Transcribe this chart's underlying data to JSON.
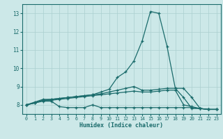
{
  "xlabel": "Humidex (Indice chaleur)",
  "xlim": [
    -0.5,
    23.5
  ],
  "ylim": [
    7.5,
    13.5
  ],
  "yticks": [
    8,
    9,
    10,
    11,
    12,
    13
  ],
  "xticks": [
    0,
    1,
    2,
    3,
    4,
    5,
    6,
    7,
    8,
    9,
    10,
    11,
    12,
    13,
    14,
    15,
    16,
    17,
    18,
    19,
    20,
    21,
    22,
    23
  ],
  "background_color": "#cce8e8",
  "line_color": "#1a6b6b",
  "grid_color": "#aacfcf",
  "series": [
    [
      8.0,
      8.1,
      8.25,
      8.3,
      8.35,
      8.4,
      8.45,
      8.5,
      8.55,
      8.7,
      8.85,
      9.5,
      9.8,
      10.4,
      11.5,
      13.1,
      13.0,
      11.2,
      8.9,
      8.4,
      7.8,
      7.8,
      7.75,
      7.75
    ],
    [
      8.0,
      8.15,
      8.3,
      8.3,
      8.35,
      8.4,
      8.45,
      8.5,
      8.55,
      8.6,
      8.7,
      8.8,
      8.9,
      9.0,
      8.8,
      8.8,
      8.85,
      8.9,
      8.9,
      8.9,
      8.4,
      7.8,
      7.75,
      7.75
    ],
    [
      8.0,
      8.1,
      8.25,
      8.25,
      8.3,
      8.35,
      8.4,
      8.45,
      8.5,
      8.55,
      8.6,
      8.65,
      8.7,
      8.75,
      8.7,
      8.7,
      8.75,
      8.8,
      8.8,
      8.0,
      7.9,
      7.8,
      7.75,
      7.75
    ],
    [
      8.0,
      8.1,
      8.2,
      8.2,
      7.9,
      7.85,
      7.85,
      7.85,
      8.0,
      7.85,
      7.85,
      7.85,
      7.85,
      7.85,
      7.85,
      7.85,
      7.85,
      7.85,
      7.85,
      7.85,
      7.85,
      7.8,
      7.75,
      7.75
    ]
  ]
}
